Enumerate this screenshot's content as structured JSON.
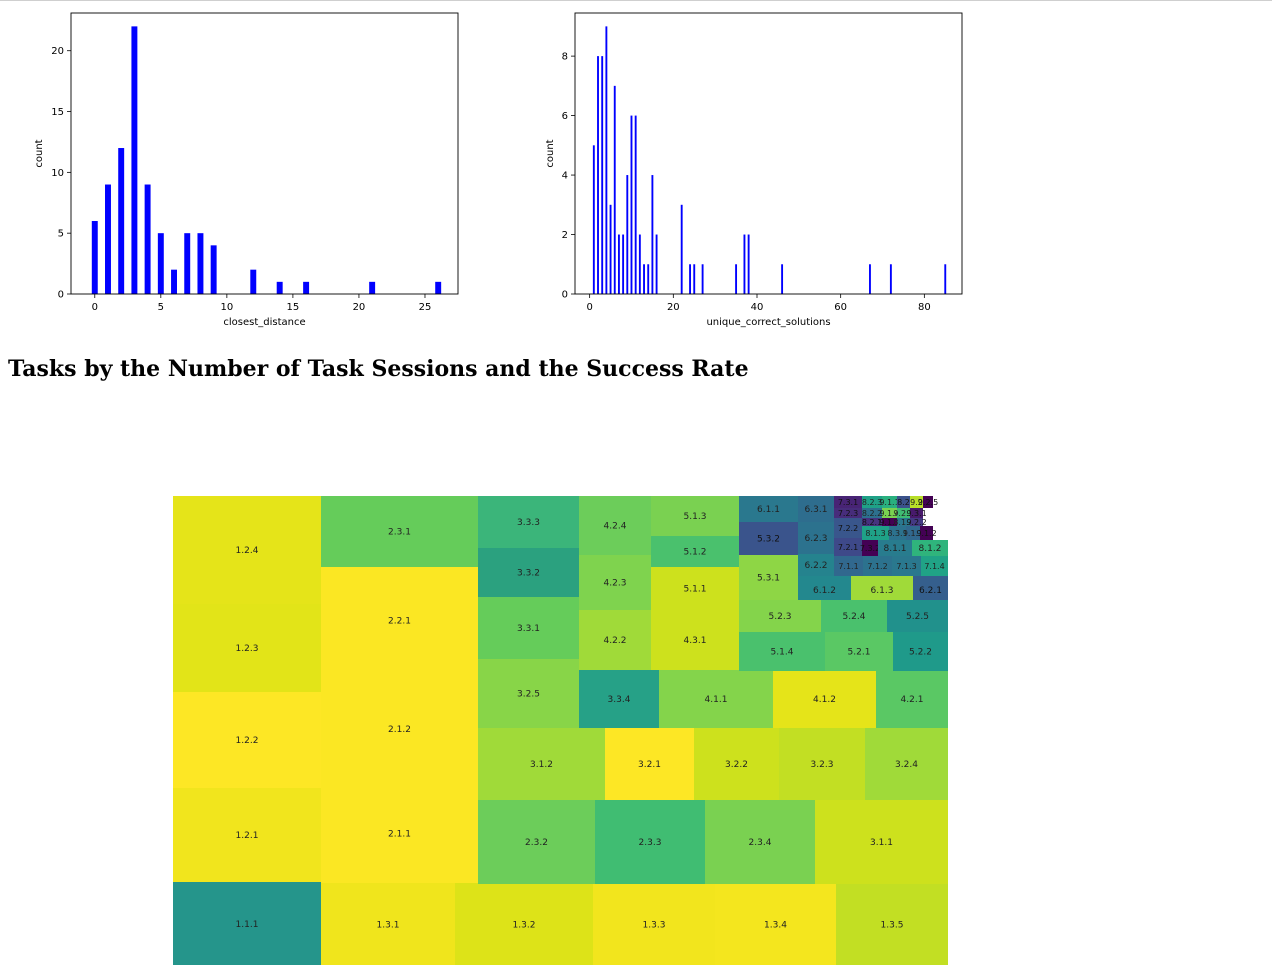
{
  "heading": "Tasks by the Number of Task Sessions and the Success Rate",
  "chart_data": [
    {
      "type": "bar",
      "xlabel": "closest_distance",
      "ylabel": "count",
      "xlim": [
        -1.8,
        27.5
      ],
      "ylim": [
        0,
        23.1
      ],
      "xticks": [
        0,
        5,
        10,
        15,
        20,
        25
      ],
      "yticks": [
        0,
        5,
        10,
        15,
        20
      ],
      "bar_width": 0.45,
      "color": "#0000ff",
      "x": [
        0,
        1,
        2,
        3,
        4,
        5,
        6,
        7,
        8,
        9,
        12,
        14,
        16,
        21,
        26
      ],
      "values": [
        6,
        9,
        12,
        22,
        9,
        5,
        2,
        5,
        5,
        4,
        2,
        1,
        1,
        1,
        1
      ]
    },
    {
      "type": "bar",
      "xlabel": "unique_correct_solutions",
      "ylabel": "count",
      "xlim": [
        -3.5,
        89
      ],
      "ylim": [
        0,
        9.45
      ],
      "xticks": [
        0,
        20,
        40,
        60,
        80
      ],
      "yticks": [
        0,
        2,
        4,
        6,
        8
      ],
      "bar_width": 0.45,
      "color": "#0000ff",
      "x": [
        1,
        2,
        3,
        4,
        5,
        6,
        7,
        8,
        9,
        10,
        11,
        12,
        13,
        14,
        15,
        16,
        22,
        24,
        25,
        27,
        35,
        37,
        38,
        46,
        67,
        72,
        85
      ],
      "values": [
        5,
        8,
        8,
        9,
        3,
        7,
        2,
        2,
        4,
        6,
        6,
        2,
        1,
        1,
        4,
        2,
        3,
        1,
        1,
        1,
        1,
        2,
        2,
        1,
        1,
        1,
        1
      ]
    },
    {
      "type": "treemap",
      "colorscale": "viridis",
      "cells": [
        {
          "label": "1.2.4",
          "color": "#e5e419"
        },
        {
          "label": "1.2.3",
          "color": "#e2e418"
        },
        {
          "label": "1.2.2",
          "color": "#fde725"
        },
        {
          "label": "1.2.1",
          "color": "#f1e51d"
        },
        {
          "label": "1.1.1",
          "color": "#25958b"
        },
        {
          "label": "2.3.1",
          "color": "#65cc5a"
        },
        {
          "label": "2.2.1",
          "color": "#fbe723"
        },
        {
          "label": "2.1.2",
          "color": "#fbe723"
        },
        {
          "label": "2.1.1",
          "color": "#fbe723"
        },
        {
          "label": "1.3.1",
          "color": "#f0e51c"
        },
        {
          "label": "1.3.2",
          "color": "#dde318"
        },
        {
          "label": "1.3.3",
          "color": "#f2e51d"
        },
        {
          "label": "1.3.4",
          "color": "#f4e61e"
        },
        {
          "label": "1.3.5",
          "color": "#c2df23"
        },
        {
          "label": "3.3.3",
          "color": "#3bb57a"
        },
        {
          "label": "3.3.2",
          "color": "#2ba17f"
        },
        {
          "label": "3.3.1",
          "color": "#65cc5a"
        },
        {
          "label": "3.2.5",
          "color": "#88d548"
        },
        {
          "label": "4.2.4",
          "color": "#6ccd5a"
        },
        {
          "label": "4.2.3",
          "color": "#7fd34e"
        },
        {
          "label": "4.2.2",
          "color": "#a0da39"
        },
        {
          "label": "5.1.3",
          "color": "#7ad151"
        },
        {
          "label": "5.1.2",
          "color": "#4ac16d"
        },
        {
          "label": "5.1.1",
          "color": "#cde11d"
        },
        {
          "label": "4.3.1",
          "color": "#cde11d"
        },
        {
          "label": "3.3.4",
          "color": "#26a187"
        },
        {
          "label": "4.1.1",
          "color": "#84d44b"
        },
        {
          "label": "4.1.2",
          "color": "#e5e419"
        },
        {
          "label": "4.2.1",
          "color": "#5ac864"
        },
        {
          "label": "3.1.2",
          "color": "#a0da39"
        },
        {
          "label": "3.2.1",
          "color": "#fde725"
        },
        {
          "label": "3.2.2",
          "color": "#cde11d"
        },
        {
          "label": "3.2.3",
          "color": "#c2df23"
        },
        {
          "label": "3.2.4",
          "color": "#a0da39"
        },
        {
          "label": "2.3.2",
          "color": "#6ccd5a"
        },
        {
          "label": "2.3.3",
          "color": "#40bd72"
        },
        {
          "label": "2.3.4",
          "color": "#7ad151"
        },
        {
          "label": "3.1.1",
          "color": "#cde11d"
        },
        {
          "label": "6.1.1",
          "color": "#2a788e"
        },
        {
          "label": "6.3.1",
          "color": "#2e6d8e"
        },
        {
          "label": "5.3.2",
          "color": "#3a548c"
        },
        {
          "label": "6.2.3",
          "color": "#2c728e"
        },
        {
          "label": "6.2.2",
          "color": "#25838e"
        },
        {
          "label": "5.3.1",
          "color": "#8ed645"
        },
        {
          "label": "6.1.2",
          "color": "#23888e"
        },
        {
          "label": "6.1.3",
          "color": "#a0da39"
        },
        {
          "label": "6.2.1",
          "color": "#355f8d"
        },
        {
          "label": "5.2.3",
          "color": "#84d44b"
        },
        {
          "label": "5.2.4",
          "color": "#4ac16d"
        },
        {
          "label": "5.2.5",
          "color": "#21918c"
        },
        {
          "label": "5.1.4",
          "color": "#4ac16d"
        },
        {
          "label": "5.2.1",
          "color": "#5ac864"
        },
        {
          "label": "5.2.2",
          "color": "#1f9a8a"
        },
        {
          "label": "7.3.1",
          "color": "#482475"
        },
        {
          "label": "8.2.3",
          "color": "#1fa187"
        },
        {
          "label": "9.1.1",
          "color": "#2ab07f"
        },
        {
          "label": "8.2",
          "color": "#3b528b"
        },
        {
          "label": "9.2",
          "color": "#b8de29"
        },
        {
          "label": "9.2.5",
          "color": "#440154"
        },
        {
          "label": "7.2.3",
          "color": "#472d7b"
        },
        {
          "label": "8.2.2",
          "color": "#2d708e"
        },
        {
          "label": "9.1.4",
          "color": "#7ad151"
        },
        {
          "label": "9.2.5",
          "color": "#3fbc73"
        },
        {
          "label": "9.3.1",
          "color": "#481a6c"
        },
        {
          "label": "8.2.1",
          "color": "#46327e"
        },
        {
          "label": "9.1.3",
          "color": "#440154"
        },
        {
          "label": "8.1.4",
          "color": "#2a788e"
        },
        {
          "label": "9.2.2",
          "color": "#443983"
        },
        {
          "label": "7.2.2",
          "color": "#39568c"
        },
        {
          "label": "8.1.3",
          "color": "#1fa187"
        },
        {
          "label": "8.3.1",
          "color": "#2c728e"
        },
        {
          "label": "9.1.1",
          "color": "#31688e"
        },
        {
          "label": "9.1.2",
          "color": "#440154"
        },
        {
          "label": "7.2.1",
          "color": "#3e4989"
        },
        {
          "label": "7.3.2",
          "color": "#440154"
        },
        {
          "label": "8.1.1",
          "color": "#287c8e"
        },
        {
          "label": "8.1.2",
          "color": "#2fb47c"
        },
        {
          "label": "7.1.1",
          "color": "#31688e"
        },
        {
          "label": "7.1.2",
          "color": "#2c728e"
        },
        {
          "label": "7.1.3",
          "color": "#2a788e"
        },
        {
          "label": "7.1.4",
          "color": "#20a386"
        }
      ]
    }
  ]
}
